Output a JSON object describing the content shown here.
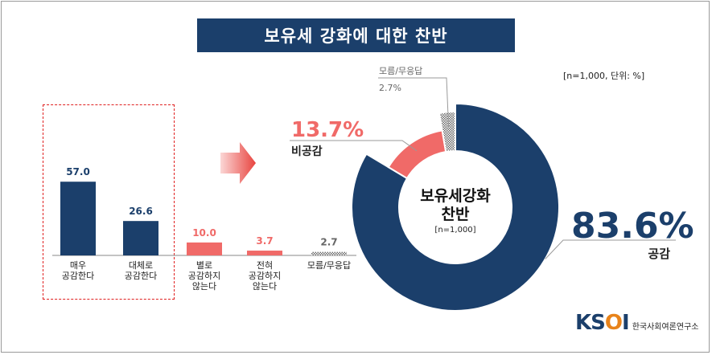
{
  "title": "보유세 강화에 대한 찬반",
  "meta_note": "[n=1,000,  단위: %]",
  "colors": {
    "navy": "#1b3f6b",
    "red": "#f06a68",
    "gray": "#9a9a9a"
  },
  "chart_data": [
    {
      "type": "bar",
      "categories": [
        "매우\n공감한다",
        "대체로\n공감한다",
        "별로\n공감하지\n않는다",
        "전혀\n공감하지\n않는다",
        "모름/무응답"
      ],
      "values": [
        57.0,
        26.6,
        10.0,
        3.7,
        2.7
      ],
      "value_labels": [
        "57.0",
        "26.6",
        "10.0",
        "3.7",
        "2.7"
      ],
      "colors": [
        "#1b3f6b",
        "#1b3f6b",
        "#f06a68",
        "#f06a68",
        "#9a9a9a"
      ],
      "title": "",
      "xlabel": "",
      "ylabel": "",
      "grid": false
    },
    {
      "type": "pie",
      "donut": true,
      "center_title": "보유세강화\n찬반",
      "center_subtitle": "[n=1,000]",
      "slices": [
        {
          "label": "공감",
          "value": 83.6,
          "value_label": "83.6%",
          "color": "#1b3f6b"
        },
        {
          "label": "비공감",
          "value": 13.7,
          "value_label": "13.7%",
          "color": "#f06a68"
        },
        {
          "label": "모름/무응답",
          "value": 2.7,
          "value_label": "2.7%",
          "color": "#9a9a9a"
        }
      ]
    }
  ],
  "logo": {
    "mark_k": "K",
    "mark_s": "S",
    "mark_o": "O",
    "mark_i": "I",
    "text": "한국사회여론연구소"
  }
}
